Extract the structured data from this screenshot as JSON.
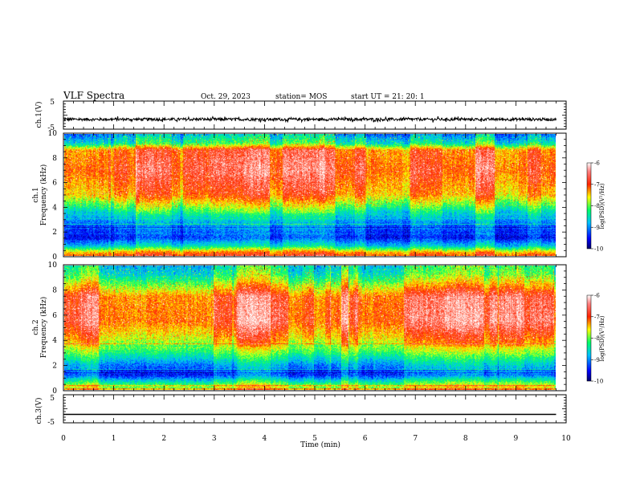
{
  "header": {
    "title": "VLF Spectra",
    "date": "Oct. 29, 2023",
    "station": "station= MOS",
    "start": "start  UT =   21: 20: 1"
  },
  "chart_data": [
    {
      "type": "line",
      "panel": "ch1-voltage",
      "ylabel": "ch.1(V)",
      "ylim": [
        -5,
        5
      ],
      "yticks": [
        "5",
        "-5"
      ],
      "x": [
        0,
        9.8
      ],
      "level": -1.5,
      "noise": 0.5
    },
    {
      "type": "heatmap",
      "panel": "ch1-spectrogram",
      "ylabel": "ch.1\nFrequency (kHz)",
      "ylabel_line1": "ch.1",
      "ylabel_line2": "Frequency (kHz)",
      "ylim": [
        0,
        10
      ],
      "yticks": [
        "0",
        "2",
        "4",
        "6",
        "8",
        "10"
      ],
      "xlim": [
        0,
        9.8
      ],
      "profile": [
        {
          "f": 0.0,
          "v": -6.8
        },
        {
          "f": 0.3,
          "v": -7.2
        },
        {
          "f": 0.8,
          "v": -8.5
        },
        {
          "f": 1.5,
          "v": -9.3
        },
        {
          "f": 2.5,
          "v": -9.0
        },
        {
          "f": 3.3,
          "v": -8.5
        },
        {
          "f": 4.0,
          "v": -7.9
        },
        {
          "f": 5.0,
          "v": -7.1
        },
        {
          "f": 7.0,
          "v": -6.7
        },
        {
          "f": 8.7,
          "v": -6.9
        },
        {
          "f": 9.2,
          "v": -8.2
        },
        {
          "f": 10.0,
          "v": -8.8
        }
      ],
      "colorbar": {
        "label": "log(PSD)(V²/Hz)",
        "ticks": [
          "-6",
          "-7",
          "-8",
          "-9",
          "-10"
        ],
        "range": [
          -10,
          -6
        ]
      }
    },
    {
      "type": "heatmap",
      "panel": "ch2-spectrogram",
      "ylabel": "ch.2\nFrequency (kHz)",
      "ylabel_line1": "ch.2",
      "ylabel_line2": "Frequency (kHz)",
      "ylim": [
        0,
        10
      ],
      "yticks": [
        "0",
        "2",
        "4",
        "6",
        "8",
        "10"
      ],
      "xlim": [
        0,
        9.8
      ],
      "profile": [
        {
          "f": 0.0,
          "v": -7.2
        },
        {
          "f": 0.5,
          "v": -8.0
        },
        {
          "f": 1.2,
          "v": -9.2
        },
        {
          "f": 2.0,
          "v": -8.8
        },
        {
          "f": 3.0,
          "v": -8.0
        },
        {
          "f": 4.0,
          "v": -7.3
        },
        {
          "f": 5.5,
          "v": -6.7
        },
        {
          "f": 7.5,
          "v": -6.8
        },
        {
          "f": 8.5,
          "v": -7.6
        },
        {
          "f": 9.3,
          "v": -8.2
        },
        {
          "f": 10.0,
          "v": -8.4
        }
      ],
      "colorbar": {
        "label": "log(PSD)(V²/Hz)",
        "ticks": [
          "-6",
          "-7",
          "-8",
          "-9",
          "-10"
        ],
        "range": [
          -10,
          -6
        ]
      }
    },
    {
      "type": "line",
      "panel": "ch3-voltage",
      "ylabel": "ch.3(V)",
      "ylim": [
        -5,
        5
      ],
      "yticks": [
        "5",
        "-5"
      ],
      "x": [
        0,
        9.8
      ],
      "level": -2.0,
      "noise": 0.0
    }
  ],
  "xaxis": {
    "label": "Time  (min)",
    "ticks": [
      "0",
      "1",
      "2",
      "3",
      "4",
      "5",
      "6",
      "7",
      "8",
      "9",
      "10"
    ],
    "xlim": [
      0,
      10
    ]
  },
  "colorbar_label": "log(PSD)(V²/Hz)",
  "colors": {
    "scale": [
      "#000066",
      "#0000ff",
      "#00bfff",
      "#00ff66",
      "#ffff00",
      "#ff2200",
      "#ffffff"
    ]
  }
}
